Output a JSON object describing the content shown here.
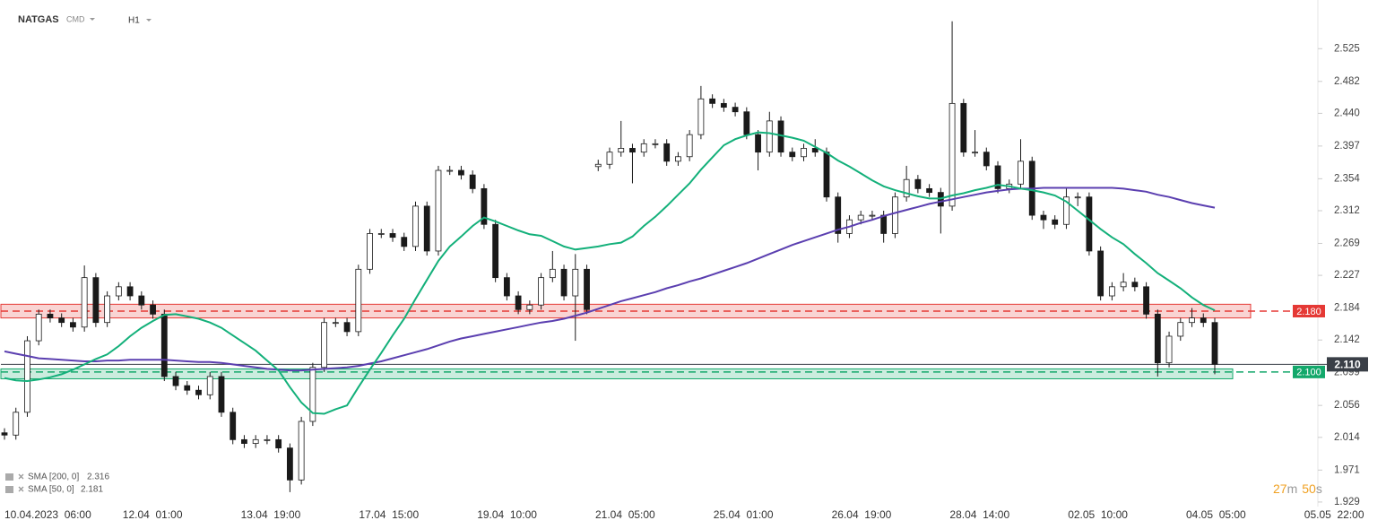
{
  "chart_data": {
    "type": "candlestick",
    "symbol": "NATGAS",
    "market": "CMD",
    "timeframe": "H1",
    "xticks": [
      "10.04.2023  06:00",
      "12.04  01:00",
      "13.04  19:00",
      "17.04  15:00",
      "19.04  10:00",
      "21.04  05:00",
      "25.04  01:00",
      "26.04  19:00",
      "28.04  14:00",
      "02.05  10:00",
      "04.05  05:00",
      "05.05  22:00"
    ],
    "ylim": [
      1.923,
      2.589
    ],
    "yticks": [
      2.525,
      2.482,
      {
        "value": 2.44,
        "label": "2.440"
      },
      2.397,
      2.354,
      2.312,
      2.269,
      2.227,
      2.184,
      2.142,
      2.099,
      2.056,
      2.014,
      1.971,
      1.929
    ],
    "up_color": "#ffffff",
    "down_color": "#1a1a1a",
    "open": [
      2.02,
      2.017,
      2.047,
      2.141,
      2.176,
      2.171,
      2.165,
      2.159,
      2.224,
      2.165,
      2.2,
      2.212,
      2.2,
      2.188,
      2.176,
      2.094,
      2.082,
      2.076,
      2.07,
      2.094,
      2.047,
      2.011,
      2.006,
      2.011,
      2.011,
      2.0,
      1.958,
      2.035,
      2.106,
      2.165,
      2.165,
      2.153,
      2.235,
      2.282,
      2.282,
      2.277,
      2.265,
      2.318,
      2.259,
      2.365,
      2.365,
      2.359,
      2.341,
      2.294,
      2.224,
      2.2,
      2.182,
      2.188,
      2.224,
      2.235,
      2.2,
      2.235,
      2.37,
      2.373,
      2.389,
      2.394,
      2.389,
      2.4,
      2.4,
      2.377,
      2.383,
      2.412,
      2.459,
      2.453,
      2.448,
      2.442,
      2.412,
      2.389,
      2.43,
      2.389,
      2.383,
      2.394,
      2.389,
      2.33,
      2.282,
      2.3,
      2.306,
      2.306,
      2.282,
      2.33,
      2.353,
      2.341,
      2.336,
      2.318,
      2.453,
      2.389,
      2.389,
      2.371,
      2.341,
      2.347,
      2.377,
      2.306,
      2.3,
      2.294,
      2.33,
      2.33,
      2.259,
      2.2,
      2.212,
      2.218,
      2.212,
      2.176,
      2.112,
      2.147,
      2.165,
      2.171,
      2.165
    ],
    "high": [
      2.026,
      2.053,
      2.147,
      2.182,
      2.182,
      2.177,
      2.171,
      2.24,
      2.23,
      2.206,
      2.218,
      2.218,
      2.206,
      2.194,
      2.182,
      2.1,
      2.088,
      2.082,
      2.1,
      2.1,
      2.053,
      2.017,
      2.017,
      2.017,
      2.017,
      2.006,
      2.041,
      2.112,
      2.171,
      2.171,
      2.171,
      2.241,
      2.288,
      2.288,
      2.288,
      2.283,
      2.324,
      2.324,
      2.371,
      2.371,
      2.371,
      2.365,
      2.347,
      2.3,
      2.23,
      2.206,
      2.194,
      2.23,
      2.259,
      2.241,
      2.255,
      2.241,
      2.379,
      2.395,
      2.43,
      2.4,
      2.406,
      2.406,
      2.406,
      2.389,
      2.418,
      2.476,
      2.465,
      2.459,
      2.454,
      2.448,
      2.418,
      2.442,
      2.436,
      2.395,
      2.4,
      2.406,
      2.395,
      2.336,
      2.306,
      2.312,
      2.312,
      2.312,
      2.336,
      2.371,
      2.359,
      2.347,
      2.342,
      2.561,
      2.459,
      2.418,
      2.395,
      2.377,
      2.353,
      2.406,
      2.383,
      2.312,
      2.306,
      2.341,
      2.336,
      2.336,
      2.265,
      2.218,
      2.23,
      2.224,
      2.218,
      2.182,
      2.153,
      2.171,
      2.184,
      2.177,
      2.171
    ],
    "low": [
      2.011,
      2.011,
      2.041,
      2.135,
      2.165,
      2.159,
      2.153,
      2.153,
      2.159,
      2.159,
      2.194,
      2.194,
      2.182,
      2.17,
      2.088,
      2.076,
      2.07,
      2.064,
      2.064,
      2.041,
      2.005,
      2.0,
      2.0,
      2.005,
      1.994,
      1.942,
      1.952,
      2.029,
      2.1,
      2.159,
      2.147,
      2.147,
      2.229,
      2.276,
      2.271,
      2.259,
      2.259,
      2.253,
      2.253,
      2.359,
      2.353,
      2.335,
      2.288,
      2.218,
      2.194,
      2.176,
      2.176,
      2.182,
      2.218,
      2.194,
      2.141,
      2.176,
      2.364,
      2.367,
      2.383,
      2.348,
      2.383,
      2.394,
      2.371,
      2.371,
      2.377,
      2.406,
      2.447,
      2.442,
      2.436,
      2.406,
      2.365,
      2.383,
      2.383,
      2.377,
      2.377,
      2.383,
      2.324,
      2.27,
      2.276,
      2.294,
      2.3,
      2.27,
      2.276,
      2.324,
      2.335,
      2.33,
      2.282,
      2.312,
      2.383,
      2.383,
      2.365,
      2.335,
      2.335,
      2.341,
      2.3,
      2.288,
      2.288,
      2.288,
      2.318,
      2.253,
      2.194,
      2.194,
      2.206,
      2.206,
      2.17,
      2.094,
      2.106,
      2.141,
      2.159,
      2.159,
      2.097
    ],
    "close": [
      2.017,
      2.047,
      2.141,
      2.176,
      2.171,
      2.165,
      2.159,
      2.224,
      2.165,
      2.2,
      2.212,
      2.2,
      2.188,
      2.176,
      2.094,
      2.082,
      2.076,
      2.07,
      2.094,
      2.047,
      2.011,
      2.006,
      2.011,
      2.011,
      2.0,
      1.958,
      2.035,
      2.106,
      2.165,
      2.165,
      2.153,
      2.235,
      2.282,
      2.282,
      2.277,
      2.265,
      2.318,
      2.259,
      2.365,
      2.365,
      2.359,
      2.341,
      2.294,
      2.224,
      2.2,
      2.182,
      2.188,
      2.224,
      2.235,
      2.2,
      2.235,
      2.182,
      2.373,
      2.389,
      2.394,
      2.389,
      2.4,
      2.4,
      2.377,
      2.383,
      2.412,
      2.459,
      2.453,
      2.448,
      2.442,
      2.412,
      2.389,
      2.43,
      2.389,
      2.383,
      2.394,
      2.389,
      2.33,
      2.282,
      2.3,
      2.306,
      2.306,
      2.282,
      2.33,
      2.353,
      2.341,
      2.336,
      2.318,
      2.453,
      2.389,
      2.389,
      2.371,
      2.341,
      2.347,
      2.377,
      2.306,
      2.3,
      2.294,
      2.33,
      2.33,
      2.259,
      2.2,
      2.212,
      2.218,
      2.212,
      2.176,
      2.112,
      2.147,
      2.165,
      2.171,
      2.165,
      2.11
    ],
    "series": [
      {
        "name": "SMA [200, 0]",
        "color": "#5b3fb0",
        "values": [
          2.127,
          2.124,
          2.121,
          2.118,
          2.117,
          2.116,
          2.115,
          2.114,
          2.114,
          2.115,
          2.115,
          2.116,
          2.116,
          2.116,
          2.116,
          2.115,
          2.114,
          2.113,
          2.113,
          2.112,
          2.11,
          2.108,
          2.106,
          2.104,
          2.103,
          2.102,
          2.102,
          2.103,
          2.104,
          2.105,
          2.106,
          2.108,
          2.111,
          2.114,
          2.118,
          2.122,
          2.126,
          2.13,
          2.135,
          2.14,
          2.144,
          2.147,
          2.15,
          2.153,
          2.156,
          2.159,
          2.162,
          2.165,
          2.167,
          2.17,
          2.174,
          2.178,
          2.183,
          2.188,
          2.193,
          2.197,
          2.201,
          2.205,
          2.21,
          2.214,
          2.219,
          2.223,
          2.228,
          2.233,
          2.238,
          2.243,
          2.249,
          2.255,
          2.261,
          2.267,
          2.272,
          2.277,
          2.282,
          2.287,
          2.291,
          2.296,
          2.3,
          2.305,
          2.309,
          2.313,
          2.317,
          2.321,
          2.324,
          2.327,
          2.33,
          2.333,
          2.336,
          2.338,
          2.34,
          2.341,
          2.341,
          2.342,
          2.342,
          2.342,
          2.342,
          2.342,
          2.342,
          2.342,
          2.341,
          2.339,
          2.337,
          2.333,
          2.33,
          2.326,
          2.322,
          2.319,
          2.316
        ]
      },
      {
        "name": "SMA [50, 0]",
        "color": "#13b07a",
        "values": [
          2.092,
          2.089,
          2.088,
          2.09,
          2.093,
          2.097,
          2.103,
          2.11,
          2.117,
          2.123,
          2.134,
          2.147,
          2.158,
          2.167,
          2.175,
          2.176,
          2.173,
          2.17,
          2.165,
          2.158,
          2.148,
          2.138,
          2.128,
          2.115,
          2.102,
          2.08,
          2.06,
          2.046,
          2.045,
          2.051,
          2.056,
          2.08,
          2.103,
          2.125,
          2.148,
          2.17,
          2.196,
          2.221,
          2.246,
          2.265,
          2.278,
          2.292,
          2.303,
          2.298,
          2.292,
          2.286,
          2.281,
          2.279,
          2.272,
          2.265,
          2.261,
          2.263,
          2.265,
          2.268,
          2.27,
          2.278,
          2.292,
          2.304,
          2.318,
          2.333,
          2.348,
          2.366,
          2.382,
          2.398,
          2.406,
          2.411,
          2.415,
          2.414,
          2.411,
          2.408,
          2.404,
          2.396,
          2.388,
          2.378,
          2.37,
          2.361,
          2.352,
          2.344,
          2.339,
          2.335,
          2.331,
          2.328,
          2.328,
          2.332,
          2.335,
          2.339,
          2.342,
          2.346,
          2.344,
          2.341,
          2.339,
          2.336,
          2.332,
          2.324,
          2.312,
          2.3,
          2.288,
          2.277,
          2.268,
          2.255,
          2.243,
          2.23,
          2.22,
          2.21,
          2.198,
          2.188,
          2.181
        ]
      }
    ],
    "levels": [
      {
        "value": 2.18,
        "label": "2.180",
        "color": "#e53935",
        "zone": [
          2.171,
          2.189
        ]
      },
      {
        "value": 2.1,
        "label": "2.100",
        "color": "#13a86b",
        "zone": [
          2.091,
          2.104
        ]
      }
    ],
    "current_price": {
      "value": 2.11,
      "label": "2.110"
    },
    "countdown": {
      "minutes": 27,
      "minutes_unit": "m",
      "seconds": 50,
      "seconds_unit": "s"
    }
  }
}
